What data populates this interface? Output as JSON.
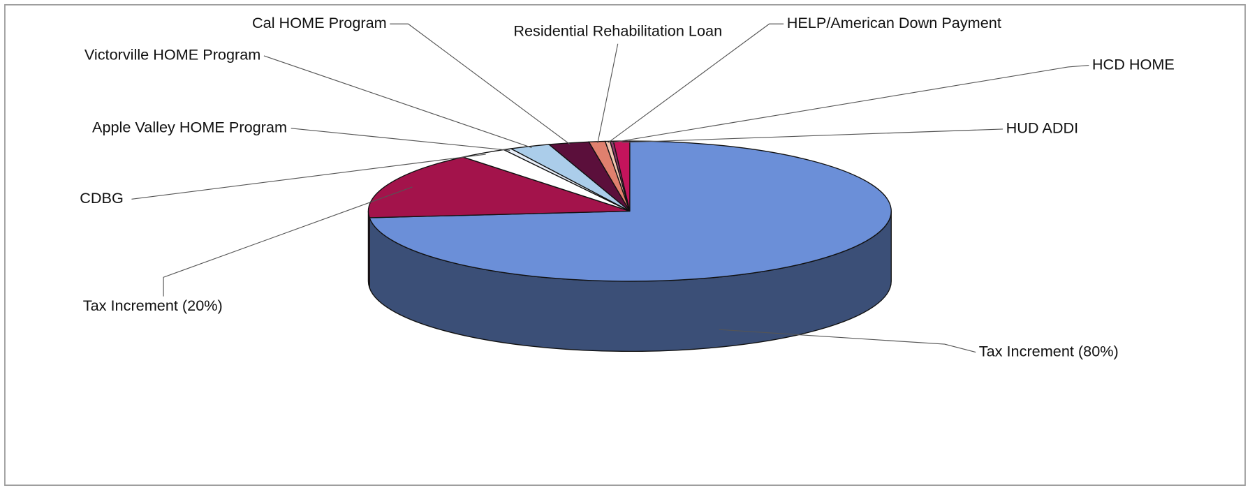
{
  "chart_data": {
    "type": "pie3d",
    "categories": [
      "Tax Increment (80%)",
      "Tax Increment (20%)",
      "CDBG",
      "Apple Valley HOME Program",
      "Victorville HOME Program",
      "Cal HOME Program",
      "Residential Rehabilitation Loan",
      "HELP/American Down Payment",
      "HCD HOME",
      "HUD ADDI"
    ],
    "values": [
      73.5,
      15.5,
      3,
      0.5,
      2.5,
      2.5,
      1,
      0.3,
      0.2,
      1
    ],
    "colors": [
      "#6b8fd8",
      "#a3134b",
      "#ffffff",
      "#e8eef8",
      "#abcdea",
      "#5b0f3b",
      "#e0806e",
      "#f2c4b0",
      "#8a3a6a",
      "#c4145c"
    ]
  }
}
